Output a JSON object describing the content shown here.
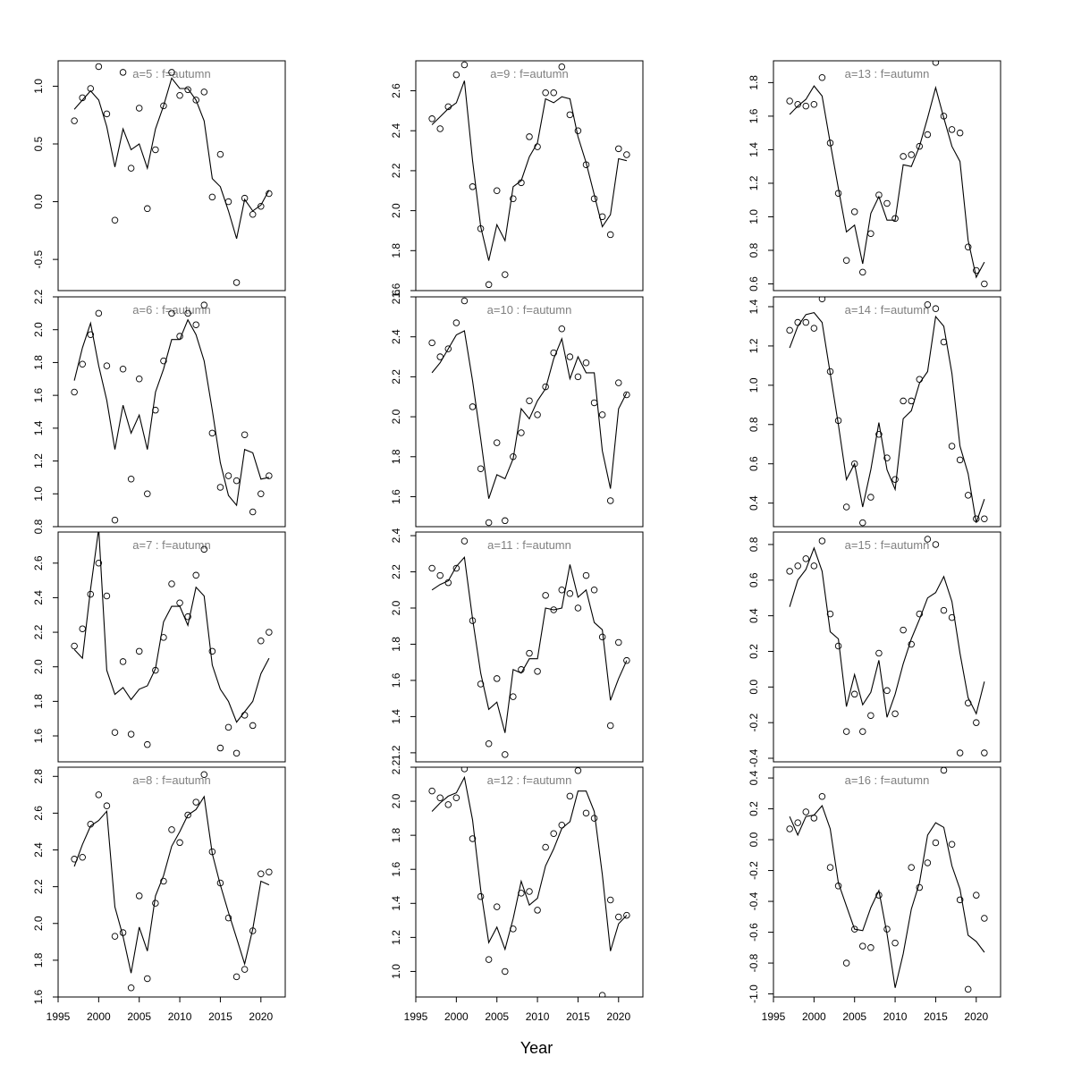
{
  "figure": {
    "xlabel": "Year",
    "x_tick_labels": [
      "1995",
      "2000",
      "2005",
      "2010",
      "2015",
      "2020"
    ]
  },
  "chart_data": [
    {
      "type": "line+scatter",
      "title": "a=5 : f=autumn",
      "xlim": [
        1995,
        2023
      ],
      "ylim": [
        -0.77,
        1.22
      ],
      "yticks": [
        -0.5,
        0.0,
        0.5,
        1.0
      ],
      "ytick_labels": [
        "-0.5",
        "0.0",
        "0.5",
        "1.0"
      ],
      "show_xaxis": false,
      "x": [
        1997,
        1998,
        1999,
        2000,
        2001,
        2002,
        2003,
        2004,
        2005,
        2006,
        2007,
        2008,
        2009,
        2010,
        2011,
        2012,
        2013,
        2014,
        2015,
        2016,
        2017,
        2018,
        2019,
        2020,
        2021
      ],
      "fitted": [
        0.8,
        0.88,
        0.96,
        0.88,
        0.65,
        0.3,
        0.63,
        0.45,
        0.5,
        0.29,
        0.63,
        0.83,
        1.07,
        0.98,
        0.98,
        0.88,
        0.7,
        0.2,
        0.13,
        -0.08,
        -0.32,
        0.02,
        -0.08,
        -0.03,
        0.1
      ],
      "observed": [
        0.7,
        0.9,
        0.98,
        1.17,
        0.76,
        -0.16,
        1.12,
        0.29,
        0.81,
        -0.06,
        0.45,
        0.83,
        1.12,
        0.92,
        0.97,
        0.88,
        0.95,
        0.04,
        0.41,
        0.0,
        -0.7,
        0.03,
        -0.11,
        -0.04,
        0.07
      ]
    },
    {
      "type": "line+scatter",
      "title": "a=9 : f=autumn",
      "xlim": [
        1995,
        2023
      ],
      "ylim": [
        1.6,
        2.75
      ],
      "yticks": [
        1.6,
        1.8,
        2.0,
        2.2,
        2.4,
        2.6
      ],
      "ytick_labels": [
        "1.6",
        "1.8",
        "2.0",
        "2.2",
        "2.4",
        "2.6"
      ],
      "show_xaxis": false,
      "x": [
        1997,
        1998,
        1999,
        2000,
        2001,
        2002,
        2003,
        2004,
        2005,
        2006,
        2007,
        2008,
        2009,
        2010,
        2011,
        2012,
        2013,
        2014,
        2015,
        2016,
        2017,
        2018,
        2019,
        2020,
        2021
      ],
      "fitted": [
        2.43,
        2.47,
        2.51,
        2.54,
        2.65,
        2.25,
        1.92,
        1.75,
        1.93,
        1.85,
        2.12,
        2.15,
        2.27,
        2.34,
        2.56,
        2.54,
        2.57,
        2.56,
        2.37,
        2.24,
        2.08,
        1.92,
        1.98,
        2.26,
        2.25
      ],
      "observed": [
        2.46,
        2.41,
        2.52,
        2.68,
        2.73,
        2.12,
        1.91,
        1.63,
        2.1,
        1.68,
        2.06,
        2.14,
        2.37,
        2.32,
        2.59,
        2.59,
        2.72,
        2.48,
        2.4,
        2.23,
        2.06,
        1.97,
        1.88,
        2.31,
        2.28
      ]
    },
    {
      "type": "line+scatter",
      "title": "a=13 : f=autumn",
      "xlim": [
        1995,
        2023
      ],
      "ylim": [
        0.56,
        1.93
      ],
      "yticks": [
        0.6,
        0.8,
        1.0,
        1.2,
        1.4,
        1.6,
        1.8
      ],
      "ytick_labels": [
        "0.6",
        "0.8",
        "1.0",
        "1.2",
        "1.4",
        "1.6",
        "1.8"
      ],
      "show_xaxis": false,
      "x": [
        1997,
        1998,
        1999,
        2000,
        2001,
        2002,
        2003,
        2004,
        2005,
        2006,
        2007,
        2008,
        2009,
        2010,
        2011,
        2012,
        2013,
        2014,
        2015,
        2016,
        2017,
        2018,
        2019,
        2020,
        2021
      ],
      "fitted": [
        1.61,
        1.66,
        1.7,
        1.78,
        1.72,
        1.44,
        1.17,
        0.91,
        0.95,
        0.72,
        1.02,
        1.12,
        0.98,
        0.98,
        1.31,
        1.3,
        1.42,
        1.59,
        1.77,
        1.59,
        1.42,
        1.33,
        0.86,
        0.64,
        0.73
      ],
      "observed": [
        1.69,
        1.67,
        1.66,
        1.67,
        1.83,
        1.44,
        1.14,
        0.74,
        1.03,
        0.67,
        0.9,
        1.13,
        1.08,
        0.99,
        1.36,
        1.37,
        1.42,
        1.49,
        1.92,
        1.6,
        1.52,
        1.5,
        0.82,
        0.68,
        0.6
      ]
    },
    {
      "type": "line+scatter",
      "title": "a=6 : f=autumn",
      "xlim": [
        1995,
        2023
      ],
      "ylim": [
        0.8,
        2.2
      ],
      "yticks": [
        0.8,
        1.0,
        1.2,
        1.4,
        1.6,
        1.8,
        2.0,
        2.2
      ],
      "ytick_labels": [
        "0.8",
        "1.0",
        "1.2",
        "1.4",
        "1.6",
        "1.8",
        "2.0",
        "2.2"
      ],
      "show_xaxis": false,
      "x": [
        1997,
        1998,
        1999,
        2000,
        2001,
        2002,
        2003,
        2004,
        2005,
        2006,
        2007,
        2008,
        2009,
        2010,
        2011,
        2012,
        2013,
        2014,
        2015,
        2016,
        2017,
        2018,
        2019,
        2020,
        2021
      ],
      "fitted": [
        1.69,
        1.89,
        2.04,
        1.78,
        1.57,
        1.27,
        1.54,
        1.37,
        1.48,
        1.27,
        1.62,
        1.76,
        1.94,
        1.94,
        2.06,
        1.97,
        1.81,
        1.51,
        1.19,
        0.99,
        0.93,
        1.27,
        1.25,
        1.09,
        1.1
      ],
      "observed": [
        1.62,
        1.79,
        1.97,
        2.1,
        1.78,
        0.84,
        1.76,
        1.09,
        1.7,
        1.0,
        1.51,
        1.81,
        2.1,
        1.96,
        2.1,
        2.03,
        2.15,
        1.37,
        1.04,
        1.11,
        1.08,
        1.36,
        0.89,
        1.0,
        1.11
      ]
    },
    {
      "type": "line+scatter",
      "title": "a=10 : f=autumn",
      "xlim": [
        1995,
        2023
      ],
      "ylim": [
        1.45,
        2.6
      ],
      "yticks": [
        1.6,
        1.8,
        2.0,
        2.2,
        2.4,
        2.6
      ],
      "ytick_labels": [
        "1.6",
        "1.8",
        "2.0",
        "2.2",
        "2.4",
        "2.6"
      ],
      "show_xaxis": false,
      "x": [
        1997,
        1998,
        1999,
        2000,
        2001,
        2002,
        2003,
        2004,
        2005,
        2006,
        2007,
        2008,
        2009,
        2010,
        2011,
        2012,
        2013,
        2014,
        2015,
        2016,
        2017,
        2018,
        2019,
        2020,
        2021
      ],
      "fitted": [
        2.22,
        2.27,
        2.34,
        2.41,
        2.43,
        2.18,
        1.89,
        1.59,
        1.71,
        1.69,
        1.79,
        2.04,
        1.99,
        2.08,
        2.14,
        2.29,
        2.39,
        2.19,
        2.3,
        2.22,
        2.22,
        1.83,
        1.64,
        2.04,
        2.12
      ],
      "observed": [
        2.37,
        2.3,
        2.34,
        2.47,
        2.58,
        2.05,
        1.74,
        1.47,
        1.87,
        1.48,
        1.8,
        1.92,
        2.08,
        2.01,
        2.15,
        2.32,
        2.44,
        2.3,
        2.2,
        2.27,
        2.07,
        2.01,
        1.58,
        2.17,
        2.11
      ]
    },
    {
      "type": "line+scatter",
      "title": "a=14 : f=autumn",
      "xlim": [
        1995,
        2023
      ],
      "ylim": [
        0.28,
        1.45
      ],
      "yticks": [
        0.4,
        0.6,
        0.8,
        1.0,
        1.2,
        1.4
      ],
      "ytick_labels": [
        "0.4",
        "0.6",
        "0.8",
        "1.0",
        "1.2",
        "1.4"
      ],
      "show_xaxis": false,
      "x": [
        1997,
        1998,
        1999,
        2000,
        2001,
        2002,
        2003,
        2004,
        2005,
        2006,
        2007,
        2008,
        2009,
        2010,
        2011,
        2012,
        2013,
        2014,
        2015,
        2016,
        2017,
        2018,
        2019,
        2020,
        2021
      ],
      "fitted": [
        1.19,
        1.3,
        1.36,
        1.37,
        1.32,
        1.06,
        0.8,
        0.52,
        0.6,
        0.38,
        0.57,
        0.81,
        0.57,
        0.47,
        0.83,
        0.87,
        1.01,
        1.07,
        1.35,
        1.3,
        1.06,
        0.69,
        0.55,
        0.3,
        0.42
      ],
      "observed": [
        1.28,
        1.32,
        1.32,
        1.29,
        1.44,
        1.07,
        0.82,
        0.38,
        0.6,
        0.3,
        0.43,
        0.75,
        0.63,
        0.52,
        0.92,
        0.92,
        1.03,
        1.41,
        1.39,
        1.22,
        0.69,
        0.62,
        0.44,
        0.32,
        0.32
      ]
    },
    {
      "type": "line+scatter",
      "title": "a=7 : f=autumn",
      "xlim": [
        1995,
        2023
      ],
      "ylim": [
        1.45,
        2.78
      ],
      "yticks": [
        1.6,
        1.8,
        2.0,
        2.2,
        2.4,
        2.6
      ],
      "ytick_labels": [
        "1.6",
        "1.8",
        "2.0",
        "2.2",
        "2.4",
        "2.6"
      ],
      "show_xaxis": false,
      "x": [
        1997,
        1998,
        1999,
        2000,
        2001,
        2002,
        2003,
        2004,
        2005,
        2006,
        2007,
        2008,
        2009,
        2010,
        2011,
        2012,
        2013,
        2014,
        2015,
        2016,
        2017,
        2018,
        2019,
        2020,
        2021
      ],
      "fitted": [
        2.1,
        2.05,
        2.45,
        2.8,
        1.98,
        1.84,
        1.88,
        1.81,
        1.87,
        1.89,
        1.99,
        2.26,
        2.35,
        2.35,
        2.24,
        2.46,
        2.41,
        2.01,
        1.87,
        1.8,
        1.68,
        1.74,
        1.8,
        1.96,
        2.05
      ],
      "observed": [
        2.12,
        2.22,
        2.42,
        2.6,
        2.41,
        1.62,
        2.03,
        1.61,
        2.09,
        1.55,
        1.98,
        2.17,
        2.48,
        2.37,
        2.29,
        2.53,
        2.68,
        2.09,
        1.53,
        1.65,
        1.5,
        1.72,
        1.66,
        2.15,
        2.2
      ]
    },
    {
      "type": "line+scatter",
      "title": "a=11 : f=autumn",
      "xlim": [
        1995,
        2023
      ],
      "ylim": [
        1.15,
        2.42
      ],
      "yticks": [
        1.2,
        1.4,
        1.6,
        1.8,
        2.0,
        2.2,
        2.4
      ],
      "ytick_labels": [
        "1.2",
        "1.4",
        "1.6",
        "1.8",
        "2.0",
        "2.2",
        "2.4"
      ],
      "show_xaxis": false,
      "x": [
        1997,
        1998,
        1999,
        2000,
        2001,
        2002,
        2003,
        2004,
        2005,
        2006,
        2007,
        2008,
        2009,
        2010,
        2011,
        2012,
        2013,
        2014,
        2015,
        2016,
        2017,
        2018,
        2019,
        2020,
        2021
      ],
      "fitted": [
        2.1,
        2.13,
        2.15,
        2.23,
        2.28,
        1.94,
        1.64,
        1.44,
        1.48,
        1.31,
        1.66,
        1.64,
        1.72,
        1.72,
        2.0,
        1.99,
        2.0,
        2.24,
        2.06,
        2.1,
        1.92,
        1.88,
        1.49,
        1.61,
        1.71
      ],
      "observed": [
        2.22,
        2.18,
        2.14,
        2.22,
        2.37,
        1.93,
        1.58,
        1.25,
        1.61,
        1.19,
        1.51,
        1.66,
        1.75,
        1.65,
        2.07,
        1.99,
        2.1,
        2.08,
        2.0,
        2.18,
        2.1,
        1.84,
        1.35,
        1.81,
        1.71
      ]
    },
    {
      "type": "line+scatter",
      "title": "a=15 : f=autumn",
      "xlim": [
        1995,
        2023
      ],
      "ylim": [
        -0.42,
        0.87
      ],
      "yticks": [
        -0.4,
        -0.2,
        0.0,
        0.2,
        0.4,
        0.6,
        0.8
      ],
      "ytick_labels": [
        "-0.4",
        "-0.2",
        "0.0",
        "0.2",
        "0.4",
        "0.6",
        "0.8"
      ],
      "show_xaxis": false,
      "x": [
        1997,
        1998,
        1999,
        2000,
        2001,
        2002,
        2003,
        2004,
        2005,
        2006,
        2007,
        2008,
        2009,
        2010,
        2011,
        2012,
        2013,
        2014,
        2015,
        2016,
        2017,
        2018,
        2019,
        2020,
        2021
      ],
      "fitted": [
        0.45,
        0.6,
        0.66,
        0.78,
        0.65,
        0.31,
        0.27,
        -0.11,
        0.07,
        -0.1,
        -0.03,
        0.15,
        -0.17,
        -0.04,
        0.13,
        0.27,
        0.38,
        0.5,
        0.53,
        0.62,
        0.48,
        0.19,
        -0.06,
        -0.15,
        0.03
      ],
      "observed": [
        0.65,
        0.68,
        0.72,
        0.68,
        0.82,
        0.41,
        0.23,
        -0.25,
        -0.04,
        -0.25,
        -0.16,
        0.19,
        -0.02,
        -0.15,
        0.32,
        0.24,
        0.41,
        0.83,
        0.8,
        0.43,
        0.39,
        -0.37,
        -0.09,
        -0.2,
        -0.37
      ]
    },
    {
      "type": "line+scatter",
      "title": "a=8 : f=autumn",
      "xlim": [
        1995,
        2023
      ],
      "ylim": [
        1.6,
        2.85
      ],
      "yticks": [
        1.6,
        1.8,
        2.0,
        2.2,
        2.4,
        2.6,
        2.8
      ],
      "ytick_labels": [
        "1.6",
        "1.8",
        "2.0",
        "2.2",
        "2.4",
        "2.6",
        "2.8"
      ],
      "show_xaxis": true,
      "x": [
        1997,
        1998,
        1999,
        2000,
        2001,
        2002,
        2003,
        2004,
        2005,
        2006,
        2007,
        2008,
        2009,
        2010,
        2011,
        2012,
        2013,
        2014,
        2015,
        2016,
        2017,
        2018,
        2019,
        2020,
        2021
      ],
      "fitted": [
        2.31,
        2.43,
        2.53,
        2.56,
        2.61,
        2.09,
        1.93,
        1.73,
        1.98,
        1.85,
        2.15,
        2.26,
        2.42,
        2.5,
        2.59,
        2.62,
        2.69,
        2.38,
        2.21,
        2.06,
        1.92,
        1.78,
        1.97,
        2.23,
        2.21
      ],
      "observed": [
        2.35,
        2.36,
        2.54,
        2.7,
        2.64,
        1.93,
        1.95,
        1.65,
        2.15,
        1.7,
        2.11,
        2.23,
        2.51,
        2.44,
        2.59,
        2.66,
        2.81,
        2.39,
        2.22,
        2.03,
        1.71,
        1.75,
        1.96,
        2.27,
        2.28
      ]
    },
    {
      "type": "line+scatter",
      "title": "a=12 : f=autumn",
      "xlim": [
        1995,
        2023
      ],
      "ylim": [
        0.85,
        2.2
      ],
      "yticks": [
        1.0,
        1.2,
        1.4,
        1.6,
        1.8,
        2.0,
        2.2
      ],
      "ytick_labels": [
        "1.0",
        "1.2",
        "1.4",
        "1.6",
        "1.8",
        "2.0",
        "2.2"
      ],
      "show_xaxis": true,
      "x": [
        1997,
        1998,
        1999,
        2000,
        2001,
        2002,
        2003,
        2004,
        2005,
        2006,
        2007,
        2008,
        2009,
        2010,
        2011,
        2012,
        2013,
        2014,
        2015,
        2016,
        2017,
        2018,
        2019,
        2020,
        2021
      ],
      "fitted": [
        1.94,
        1.99,
        2.03,
        2.05,
        2.14,
        1.89,
        1.48,
        1.17,
        1.26,
        1.13,
        1.31,
        1.53,
        1.39,
        1.43,
        1.62,
        1.72,
        1.84,
        1.88,
        2.06,
        2.06,
        1.94,
        1.57,
        1.12,
        1.28,
        1.33
      ],
      "observed": [
        2.06,
        2.02,
        1.98,
        2.02,
        2.19,
        1.78,
        1.44,
        1.07,
        1.38,
        1.0,
        1.25,
        1.46,
        1.47,
        1.36,
        1.73,
        1.81,
        1.86,
        2.03,
        2.18,
        1.93,
        1.9,
        0.86,
        1.42,
        1.32,
        1.33
      ]
    },
    {
      "type": "line+scatter",
      "title": "a=16 : f=autumn",
      "xlim": [
        1995,
        2023
      ],
      "ylim": [
        -1.02,
        0.47
      ],
      "yticks": [
        -1.0,
        -0.8,
        -0.6,
        -0.4,
        -0.2,
        0.0,
        0.2,
        0.4
      ],
      "ytick_labels": [
        "-1.0",
        "-0.8",
        "-0.6",
        "-0.4",
        "-0.2",
        "0.0",
        "0.2",
        "0.4"
      ],
      "show_xaxis": true,
      "x": [
        1997,
        1998,
        1999,
        2000,
        2001,
        2002,
        2003,
        2004,
        2005,
        2006,
        2007,
        2008,
        2009,
        2010,
        2011,
        2012,
        2013,
        2014,
        2015,
        2016,
        2017,
        2018,
        2019,
        2020,
        2021
      ],
      "fitted": [
        0.15,
        0.03,
        0.15,
        0.16,
        0.22,
        0.07,
        -0.28,
        -0.43,
        -0.58,
        -0.59,
        -0.44,
        -0.33,
        -0.61,
        -0.96,
        -0.74,
        -0.45,
        -0.28,
        0.03,
        0.11,
        0.08,
        -0.17,
        -0.32,
        -0.62,
        -0.66,
        -0.73
      ],
      "observed": [
        0.07,
        0.11,
        0.18,
        0.14,
        0.28,
        -0.18,
        -0.3,
        -0.8,
        -0.58,
        -0.69,
        -0.7,
        -0.36,
        -0.58,
        -0.67,
        null,
        -0.18,
        -0.31,
        -0.15,
        -0.02,
        0.45,
        -0.03,
        -0.39,
        -0.97,
        -0.36,
        -0.51
      ]
    }
  ]
}
